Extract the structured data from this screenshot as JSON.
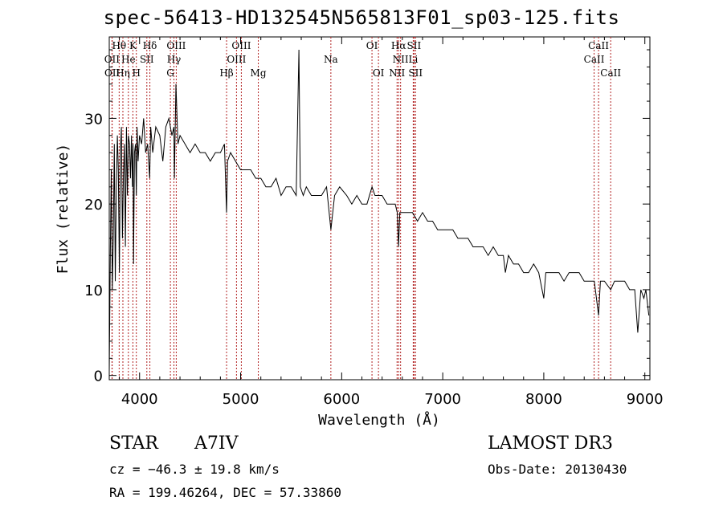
{
  "chart_data": {
    "type": "line",
    "title": "spec-56413-HD132545N565813F01_sp03-125.fits",
    "xlabel": "Wavelength (Å)",
    "ylabel": "Flux (relative)",
    "xlim": [
      3700,
      9050
    ],
    "ylim": [
      -0.5,
      39.5
    ],
    "xticks": [
      4000,
      5000,
      6000,
      7000,
      8000,
      9000
    ],
    "yticks": [
      0,
      10,
      20,
      30
    ],
    "grid": false,
    "line_marker_color": "#b22222",
    "lines": [
      {
        "label": "Hθ",
        "wave": 3798,
        "row": 0
      },
      {
        "label": "OII",
        "wave": 3727,
        "row": 1
      },
      {
        "label": "OII",
        "wave": 3729,
        "row": 2
      },
      {
        "label": "He",
        "wave": 3889,
        "row": 1
      },
      {
        "label": "Hη",
        "wave": 3835,
        "row": 2
      },
      {
        "label": "K",
        "wave": 3934,
        "row": 0
      },
      {
        "label": "SII",
        "wave": 4072,
        "row": 1
      },
      {
        "label": "H",
        "wave": 3968,
        "row": 2
      },
      {
        "label": "Hδ",
        "wave": 4102,
        "row": 0
      },
      {
        "label": "OIII",
        "wave": 4363,
        "row": 0
      },
      {
        "label": "Hγ",
        "wave": 4340,
        "row": 1
      },
      {
        "label": "G",
        "wave": 4305,
        "row": 2
      },
      {
        "label": "OIII",
        "wave": 5007,
        "row": 0
      },
      {
        "label": "OIII",
        "wave": 4959,
        "row": 1
      },
      {
        "label": "Hβ",
        "wave": 4861,
        "row": 2
      },
      {
        "label": "Mg",
        "wave": 5175,
        "row": 2
      },
      {
        "label": "Na",
        "wave": 5893,
        "row": 1
      },
      {
        "label": "OI",
        "wave": 6300,
        "row": 0
      },
      {
        "label": "OI",
        "wave": 6364,
        "row": 2
      },
      {
        "label": "Hα",
        "wave": 6563,
        "row": 0
      },
      {
        "label": "SII",
        "wave": 6716,
        "row": 0
      },
      {
        "label": "NII",
        "wave": 6583,
        "row": 1
      },
      {
        "label": "Li",
        "wave": 6708,
        "row": 1
      },
      {
        "label": "NII",
        "wave": 6548,
        "row": 2
      },
      {
        "label": "SII",
        "wave": 6731,
        "row": 2
      },
      {
        "label": "CaII",
        "wave": 8542,
        "row": 0
      },
      {
        "label": "CaII",
        "wave": 8498,
        "row": 1
      },
      {
        "label": "CaII",
        "wave": 8662,
        "row": 2
      }
    ],
    "series": [
      {
        "name": "flux",
        "x": [
          3700,
          3710,
          3720,
          3730,
          3740,
          3750,
          3760,
          3770,
          3780,
          3790,
          3800,
          3810,
          3820,
          3830,
          3840,
          3850,
          3860,
          3870,
          3880,
          3890,
          3900,
          3910,
          3920,
          3930,
          3935,
          3940,
          3950,
          3960,
          3968,
          3975,
          3985,
          4000,
          4020,
          4040,
          4060,
          4080,
          4100,
          4110,
          4130,
          4160,
          4200,
          4230,
          4260,
          4290,
          4320,
          4340,
          4345,
          4360,
          4380,
          4400,
          4450,
          4500,
          4550,
          4600,
          4650,
          4700,
          4750,
          4800,
          4840,
          4861,
          4870,
          4900,
          4950,
          5000,
          5050,
          5100,
          5150,
          5200,
          5250,
          5300,
          5350,
          5400,
          5450,
          5500,
          5550,
          5577,
          5590,
          5620,
          5650,
          5700,
          5750,
          5800,
          5850,
          5893,
          5930,
          5980,
          6050,
          6100,
          6150,
          6200,
          6250,
          6300,
          6330,
          6400,
          6450,
          6500,
          6530,
          6550,
          6563,
          6575,
          6600,
          6650,
          6700,
          6750,
          6800,
          6850,
          6900,
          6950,
          7000,
          7050,
          7100,
          7150,
          7200,
          7250,
          7300,
          7350,
          7400,
          7450,
          7500,
          7550,
          7600,
          7620,
          7650,
          7700,
          7750,
          7800,
          7850,
          7900,
          7950,
          8000,
          8020,
          8050,
          8100,
          8150,
          8200,
          8250,
          8300,
          8350,
          8400,
          8450,
          8500,
          8542,
          8560,
          8600,
          8662,
          8700,
          8750,
          8800,
          8850,
          8900,
          8930,
          8960,
          8990,
          9010,
          9040
        ],
        "values": [
          0.5,
          14,
          24,
          10,
          16,
          27,
          11,
          22,
          28,
          24,
          12,
          26,
          29,
          16,
          23,
          27,
          15,
          29,
          21,
          28,
          27,
          23,
          28,
          22,
          27,
          13,
          26,
          27,
          21,
          29,
          25,
          28,
          27,
          30,
          26,
          27,
          23,
          29,
          26,
          29,
          28,
          25,
          29,
          30,
          28,
          29,
          23,
          34,
          27,
          28,
          27,
          26,
          27,
          26,
          26,
          25,
          26,
          26,
          27,
          19,
          25,
          26,
          25,
          24,
          24,
          24,
          23,
          23,
          22,
          22,
          23,
          21,
          22,
          22,
          21,
          38,
          22,
          21,
          22,
          21,
          21,
          21,
          22,
          17,
          21,
          22,
          21,
          20,
          21,
          20,
          20,
          22,
          21,
          21,
          20,
          20,
          20,
          19,
          15,
          19,
          19,
          19,
          19,
          18,
          19,
          18,
          18,
          17,
          17,
          17,
          17,
          16,
          16,
          16,
          15,
          15,
          15,
          14,
          15,
          14,
          14,
          12,
          14,
          13,
          13,
          12,
          12,
          13,
          12,
          9,
          12,
          12,
          12,
          12,
          11,
          12,
          12,
          12,
          11,
          11,
          11,
          7,
          11,
          11,
          10,
          11,
          11,
          11,
          10,
          10,
          5,
          10,
          9,
          10,
          7
        ],
        "color": "#000000"
      }
    ]
  },
  "info": {
    "object_type": "STAR",
    "spectral_class": "A7IV",
    "survey": "LAMOST DR3",
    "cz": "cz = −46.3 ± 19.8 km/s",
    "obs_date": "Obs-Date: 20130430",
    "coords": "RA = 199.46264, DEC =  57.33860"
  }
}
